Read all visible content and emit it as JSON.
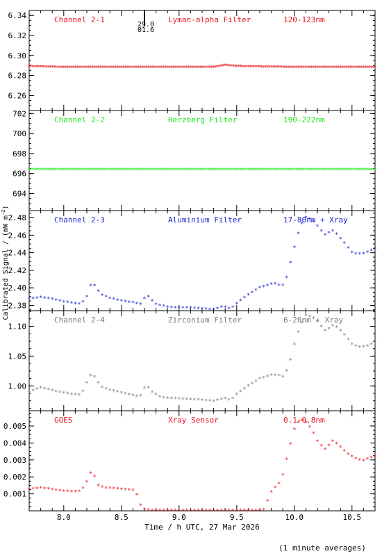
{
  "figure": {
    "ylabel": "Calibrated Signal / (mW m",
    "ylabel_sup": "-2",
    "ylabel_end": ")",
    "xlabel": "Time / h UTC, 27 Mar 2026",
    "footnote": "(1 minute averages)",
    "marker_label_top": "29.0",
    "marker_label_bottom": "01.6",
    "marker_x": 8.7
  },
  "chart_data": [
    {
      "type": "scatter",
      "name": "Channel 2-1",
      "filter": "Lyman-alpha Filter",
      "band": "120-123nm",
      "color": "#e8141e",
      "xlim": [
        7.7,
        10.7
      ],
      "ylim": [
        6.245,
        6.345
      ],
      "yticks": [
        6.26,
        6.28,
        6.3,
        6.32,
        6.34
      ],
      "ytick_labels": [
        "6.26",
        "6.28",
        "6.30",
        "6.32",
        "6.34"
      ],
      "xticks": [
        8.0,
        8.5,
        9.0,
        9.5,
        10.0,
        10.5
      ],
      "points": [
        [
          7.7,
          6.289
        ],
        [
          8.0,
          6.288
        ],
        [
          8.5,
          6.288
        ],
        [
          9.0,
          6.288
        ],
        [
          9.3,
          6.288
        ],
        [
          9.4,
          6.29
        ],
        [
          9.5,
          6.289
        ],
        [
          10.0,
          6.288
        ],
        [
          10.5,
          6.288
        ],
        [
          10.7,
          6.288
        ]
      ]
    },
    {
      "type": "scatter",
      "name": "Channel 2-2",
      "filter": "Herzberg Filter",
      "band": "190-222nm",
      "color": "#1ee61e",
      "xlim": [
        7.7,
        10.7
      ],
      "ylim": [
        692.3,
        702.3
      ],
      "yticks": [
        694,
        696,
        698,
        700,
        702
      ],
      "ytick_labels": [
        "694",
        "696",
        "698",
        "700",
        "702"
      ],
      "xticks": [
        8.0,
        8.5,
        9.0,
        9.5,
        10.0,
        10.5
      ],
      "points": [
        [
          7.7,
          696.4
        ],
        [
          8.5,
          696.4
        ],
        [
          9.0,
          696.4
        ],
        [
          9.5,
          696.4
        ],
        [
          10.0,
          696.4
        ],
        [
          10.7,
          696.4
        ]
      ]
    },
    {
      "type": "scatter",
      "name": "Channel 2-3",
      "filter": "Aluminium Filter",
      "band": "17-80nm + Xray",
      "color": "#1e28c8",
      "xlim": [
        7.7,
        10.7
      ],
      "ylim": [
        2.374,
        2.488
      ],
      "yticks": [
        2.38,
        2.4,
        2.42,
        2.44,
        2.46,
        2.48
      ],
      "ytick_labels": [
        "2.38",
        "2.40",
        "2.42",
        "2.44",
        "2.46",
        "2.48"
      ],
      "xticks": [
        8.0,
        8.5,
        9.0,
        9.5,
        10.0,
        10.5
      ],
      "points": [
        [
          7.7,
          2.387
        ],
        [
          7.8,
          2.389
        ],
        [
          7.9,
          2.387
        ],
        [
          8.0,
          2.384
        ],
        [
          8.1,
          2.382
        ],
        [
          8.15,
          2.381
        ],
        [
          8.2,
          2.39
        ],
        [
          8.24,
          2.405
        ],
        [
          8.27,
          2.402
        ],
        [
          8.32,
          2.392
        ],
        [
          8.4,
          2.388
        ],
        [
          8.5,
          2.385
        ],
        [
          8.6,
          2.383
        ],
        [
          8.67,
          2.381
        ],
        [
          8.7,
          2.388
        ],
        [
          8.72,
          2.392
        ],
        [
          8.75,
          2.387
        ],
        [
          8.8,
          2.381
        ],
        [
          8.9,
          2.378
        ],
        [
          9.0,
          2.377
        ],
        [
          9.1,
          2.377
        ],
        [
          9.2,
          2.376
        ],
        [
          9.3,
          2.375
        ],
        [
          9.35,
          2.377
        ],
        [
          9.38,
          2.379
        ],
        [
          9.42,
          2.377
        ],
        [
          9.45,
          2.376
        ],
        [
          9.5,
          2.382
        ],
        [
          9.6,
          2.392
        ],
        [
          9.7,
          2.4
        ],
        [
          9.8,
          2.404
        ],
        [
          9.85,
          2.405
        ],
        [
          9.88,
          2.401
        ],
        [
          9.92,
          2.405
        ],
        [
          9.95,
          2.42
        ],
        [
          10.0,
          2.446
        ],
        [
          10.05,
          2.47
        ],
        [
          10.1,
          2.48
        ],
        [
          10.15,
          2.478
        ],
        [
          10.2,
          2.47
        ],
        [
          10.25,
          2.462
        ],
        [
          10.28,
          2.459
        ],
        [
          10.32,
          2.466
        ],
        [
          10.36,
          2.462
        ],
        [
          10.4,
          2.456
        ],
        [
          10.45,
          2.448
        ],
        [
          10.5,
          2.44
        ],
        [
          10.55,
          2.438
        ],
        [
          10.6,
          2.439
        ],
        [
          10.65,
          2.441
        ],
        [
          10.7,
          2.445
        ]
      ]
    },
    {
      "type": "scatter",
      "name": "Channel 2-4",
      "filter": "Zirconium Filter",
      "band": "6-20nm + Xray",
      "color": "#787878",
      "xlim": [
        7.7,
        10.7
      ],
      "ylim": [
        0.9583,
        1.1263
      ],
      "yticks": [
        1.0,
        1.05,
        1.1
      ],
      "ytick_labels": [
        "1.00",
        "1.05",
        "1.10"
      ],
      "xticks": [
        8.0,
        8.5,
        9.0,
        9.5,
        10.0,
        10.5
      ],
      "points": [
        [
          7.7,
          0.99
        ],
        [
          7.8,
          0.997
        ],
        [
          7.9,
          0.992
        ],
        [
          8.0,
          0.988
        ],
        [
          8.1,
          0.985
        ],
        [
          8.15,
          0.984
        ],
        [
          8.2,
          1.005
        ],
        [
          8.24,
          1.02
        ],
        [
          8.28,
          1.012
        ],
        [
          8.32,
          0.998
        ],
        [
          8.4,
          0.993
        ],
        [
          8.5,
          0.988
        ],
        [
          8.6,
          0.984
        ],
        [
          8.66,
          0.981
        ],
        [
          8.7,
          0.996
        ],
        [
          8.72,
          1.0
        ],
        [
          8.76,
          0.99
        ],
        [
          8.85,
          0.98
        ],
        [
          9.0,
          0.978
        ],
        [
          9.2,
          0.976
        ],
        [
          9.3,
          0.974
        ],
        [
          9.35,
          0.977
        ],
        [
          9.4,
          0.979
        ],
        [
          9.45,
          0.975
        ],
        [
          9.5,
          0.986
        ],
        [
          9.6,
          1.0
        ],
        [
          9.7,
          1.012
        ],
        [
          9.8,
          1.018
        ],
        [
          9.85,
          1.018
        ],
        [
          9.9,
          1.015
        ],
        [
          9.95,
          1.03
        ],
        [
          10.0,
          1.07
        ],
        [
          10.05,
          1.1
        ],
        [
          10.1,
          1.118
        ],
        [
          10.15,
          1.116
        ],
        [
          10.2,
          1.108
        ],
        [
          10.25,
          1.095
        ],
        [
          10.28,
          1.09
        ],
        [
          10.32,
          1.102
        ],
        [
          10.38,
          1.097
        ],
        [
          10.45,
          1.082
        ],
        [
          10.5,
          1.07
        ],
        [
          10.55,
          1.065
        ],
        [
          10.62,
          1.066
        ],
        [
          10.7,
          1.072
        ]
      ]
    },
    {
      "type": "scatter",
      "name": "GOES",
      "filter": "Xray Sensor",
      "band": "0.1-0.8nm",
      "color": "#e8141e",
      "xlim": [
        7.7,
        10.7
      ],
      "ylim": [
        0.0,
        0.0059
      ],
      "yticks": [
        0.001,
        0.002,
        0.003,
        0.004,
        0.005
      ],
      "ytick_labels": [
        "0.001",
        "0.002",
        "0.003",
        "0.004",
        "0.005"
      ],
      "xticks": [
        8.0,
        8.5,
        9.0,
        9.5,
        10.0,
        10.5
      ],
      "xtick_labels": [
        "8.0",
        "8.5",
        "9.0",
        "9.5",
        "10.0",
        "10.5"
      ],
      "points": [
        [
          7.7,
          0.00125
        ],
        [
          7.8,
          0.00135
        ],
        [
          7.9,
          0.00125
        ],
        [
          8.0,
          0.00115
        ],
        [
          8.1,
          0.00112
        ],
        [
          8.15,
          0.00115
        ],
        [
          8.2,
          0.0017
        ],
        [
          8.22,
          0.00215
        ],
        [
          8.24,
          0.00225
        ],
        [
          8.27,
          0.002
        ],
        [
          8.3,
          0.0015
        ],
        [
          8.35,
          0.00135
        ],
        [
          8.45,
          0.0013
        ],
        [
          8.55,
          0.00125
        ],
        [
          8.6,
          0.0012
        ],
        [
          8.63,
          0.001
        ],
        [
          8.66,
          0.00045
        ],
        [
          8.68,
          0.0001
        ],
        [
          8.75,
          2e-05
        ],
        [
          9.0,
          2e-05
        ],
        [
          9.5,
          2e-05
        ],
        [
          9.73,
          2e-05
        ],
        [
          9.76,
          0.0004
        ],
        [
          9.78,
          0.0009
        ],
        [
          9.82,
          0.0013
        ],
        [
          9.86,
          0.0015
        ],
        [
          9.9,
          0.0021
        ],
        [
          9.95,
          0.0035
        ],
        [
          10.0,
          0.0048
        ],
        [
          10.05,
          0.0054
        ],
        [
          10.1,
          0.0052
        ],
        [
          10.15,
          0.0048
        ],
        [
          10.2,
          0.0041
        ],
        [
          10.25,
          0.0037
        ],
        [
          10.28,
          0.00355
        ],
        [
          10.32,
          0.00415
        ],
        [
          10.38,
          0.0039
        ],
        [
          10.45,
          0.0034
        ],
        [
          10.55,
          0.003
        ],
        [
          10.6,
          0.00295
        ],
        [
          10.65,
          0.0031
        ],
        [
          10.7,
          0.0032
        ]
      ]
    }
  ]
}
